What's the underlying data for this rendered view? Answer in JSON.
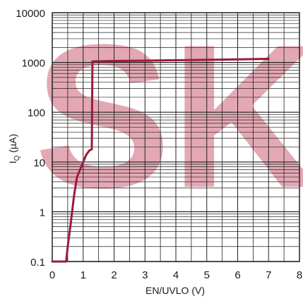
{
  "chart_data": {
    "type": "line",
    "title": "",
    "xlabel": "EN/UVLO (V)",
    "ylabel_main": "I",
    "ylabel_sub": "Q",
    "ylabel_unit": " (µA)",
    "y_scale": "log",
    "xlim": [
      0,
      8
    ],
    "ylim": [
      0.1,
      10000
    ],
    "x_ticks": [
      "0",
      "1",
      "2",
      "3",
      "4",
      "5",
      "6",
      "7",
      "8"
    ],
    "y_ticks": [
      "0.1",
      "1",
      "10",
      "100",
      "1000",
      "10000"
    ],
    "grid": true,
    "line_color": "#9b1b3a",
    "watermark": "SK",
    "watermark_color": "#e3a8b4",
    "series": [
      {
        "x": [
          0.0,
          0.45,
          0.5,
          0.6,
          0.7,
          0.8,
          0.9,
          1.0,
          1.1,
          1.2,
          1.28,
          1.3,
          2.0,
          3.0,
          4.0,
          5.0,
          6.0,
          7.0
        ],
        "y": [
          0.1,
          0.1,
          0.2,
          0.6,
          2.0,
          5.0,
          7.0,
          10.0,
          14.0,
          17.0,
          18.0,
          1050,
          1070,
          1090,
          1110,
          1130,
          1150,
          1180
        ]
      }
    ]
  }
}
